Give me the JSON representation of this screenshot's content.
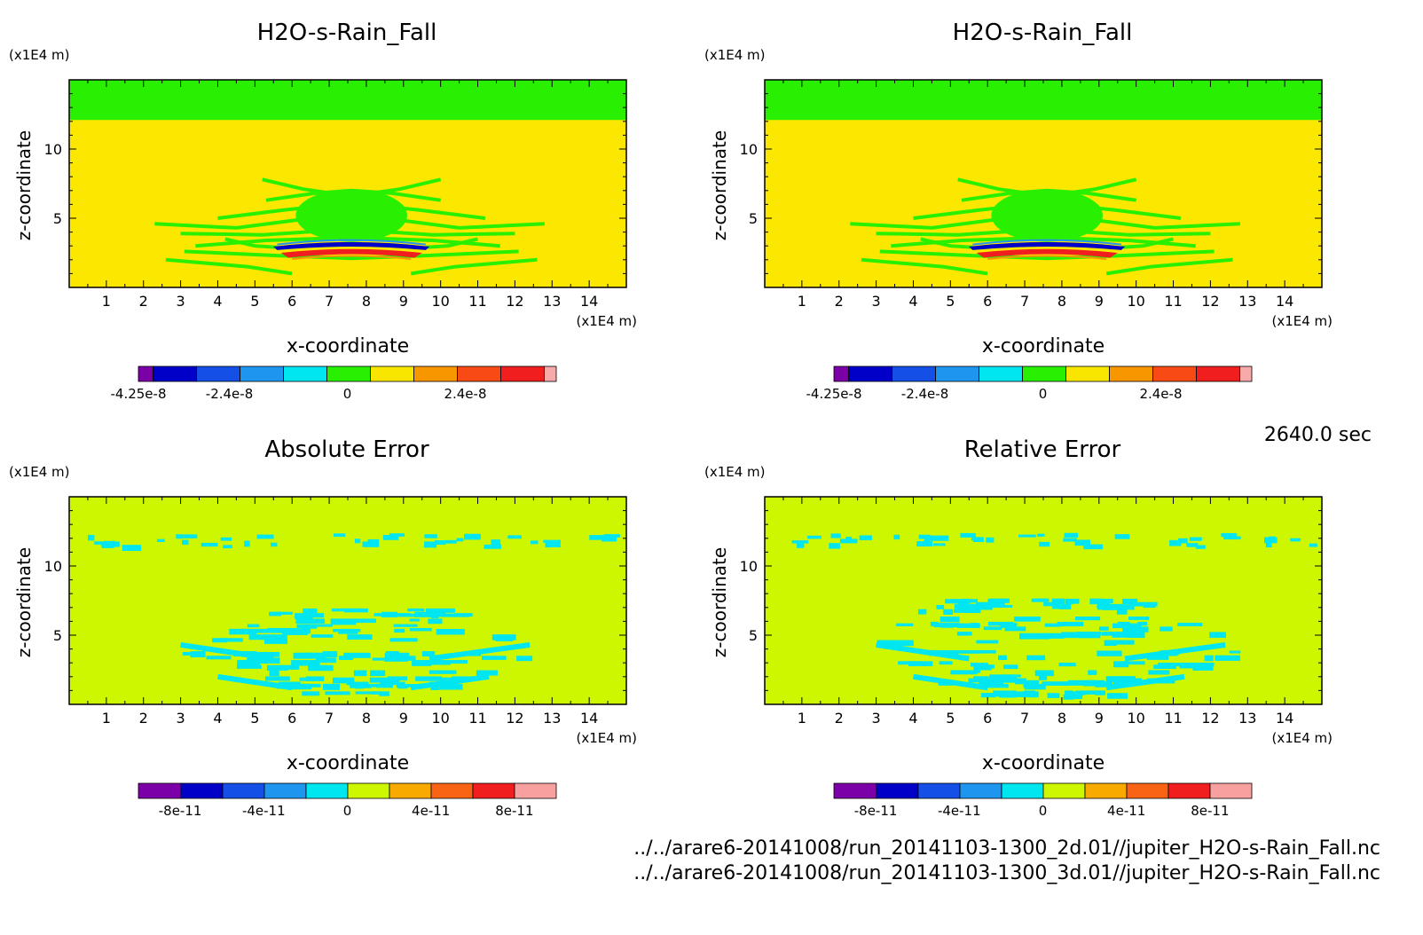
{
  "figure": {
    "time_label": "2640.0 sec",
    "footer_files": [
      "../../arare6-20141008/run_20141103-1300_2d.01//jupiter_H2O-s-Rain_Fall.nc",
      "../../arare6-20141008/run_20141103-1300_3d.01//jupiter_H2O-s-Rain_Fall.nc"
    ]
  },
  "colors": {
    "field_palette": [
      "#7b00a8",
      "#0000c8",
      "#1450e6",
      "#1e96f0",
      "#00e6f0",
      "#28f000",
      "#f8e600",
      "#f89600",
      "#f84a14",
      "#f01e1e",
      "#f8aaaa"
    ],
    "error_palette": [
      "#7b00a8",
      "#0000c8",
      "#1450e6",
      "#1e96f0",
      "#00e6f0",
      "#cdf700",
      "#f8aa00",
      "#f86414",
      "#f01e1e",
      "#f8a0a0"
    ],
    "green_field": "#28f000",
    "yellow_field": "#fbe700",
    "error_bg": "#cdf700",
    "error_cyan": "#00e6f0",
    "deep_blue": "#0000c8",
    "red": "#f01e1e"
  },
  "chart_data": [
    {
      "type": "heatmap",
      "title": "H2O-s-Rain_Fall",
      "xlabel": "x-coordinate",
      "ylabel": "z-coordinate",
      "x_unit": "(x1E4 m)",
      "y_unit": "(x1E4 m)",
      "xlim": [
        0,
        15
      ],
      "ylim": [
        0,
        15
      ],
      "x_ticks": [
        "1",
        "2",
        "3",
        "4",
        "5",
        "6",
        "7",
        "8",
        "9",
        "10",
        "11",
        "12",
        "13",
        "14"
      ],
      "y_ticks": [
        "5",
        "10"
      ],
      "colorbar_labels": [
        "-4.25e-8",
        "-2.4e-8",
        "0",
        "2.4e-8"
      ],
      "colorbar_label_values": [
        -4.25e-08,
        -2.4e-08,
        0,
        2.4e-08
      ]
    },
    {
      "type": "heatmap",
      "title": "H2O-s-Rain_Fall",
      "xlabel": "x-coordinate",
      "ylabel": "z-coordinate",
      "x_unit": "(x1E4 m)",
      "y_unit": "(x1E4 m)",
      "xlim": [
        0,
        15
      ],
      "ylim": [
        0,
        15
      ],
      "x_ticks": [
        "1",
        "2",
        "3",
        "4",
        "5",
        "6",
        "7",
        "8",
        "9",
        "10",
        "11",
        "12",
        "13",
        "14"
      ],
      "y_ticks": [
        "5",
        "10"
      ],
      "colorbar_labels": [
        "-4.25e-8",
        "-2.4e-8",
        "0",
        "2.4e-8"
      ],
      "colorbar_label_values": [
        -4.25e-08,
        -2.4e-08,
        0,
        2.4e-08
      ]
    },
    {
      "type": "heatmap",
      "title": "Absolute Error",
      "xlabel": "x-coordinate",
      "ylabel": "z-coordinate",
      "x_unit": "(x1E4 m)",
      "y_unit": "(x1E4 m)",
      "xlim": [
        0,
        15
      ],
      "ylim": [
        0,
        15
      ],
      "x_ticks": [
        "1",
        "2",
        "3",
        "4",
        "5",
        "6",
        "7",
        "8",
        "9",
        "10",
        "11",
        "12",
        "13",
        "14"
      ],
      "y_ticks": [
        "5",
        "10"
      ],
      "colorbar_labels": [
        "-8e-11",
        "-4e-11",
        "0",
        "4e-11",
        "8e-11"
      ],
      "colorbar_label_values": [
        -8e-11,
        -4e-11,
        0,
        4e-11,
        8e-11
      ]
    },
    {
      "type": "heatmap",
      "title": "Relative Error",
      "xlabel": "x-coordinate",
      "ylabel": "z-coordinate",
      "x_unit": "(x1E4 m)",
      "y_unit": "(x1E4 m)",
      "xlim": [
        0,
        15
      ],
      "ylim": [
        0,
        15
      ],
      "x_ticks": [
        "1",
        "2",
        "3",
        "4",
        "5",
        "6",
        "7",
        "8",
        "9",
        "10",
        "11",
        "12",
        "13",
        "14"
      ],
      "y_ticks": [
        "5",
        "10"
      ],
      "colorbar_labels": [
        "-8e-11",
        "-4e-11",
        "0",
        "4e-11",
        "8e-11"
      ],
      "colorbar_label_values": [
        -8e-11,
        -4e-11,
        0,
        4e-11,
        8e-11
      ]
    }
  ]
}
